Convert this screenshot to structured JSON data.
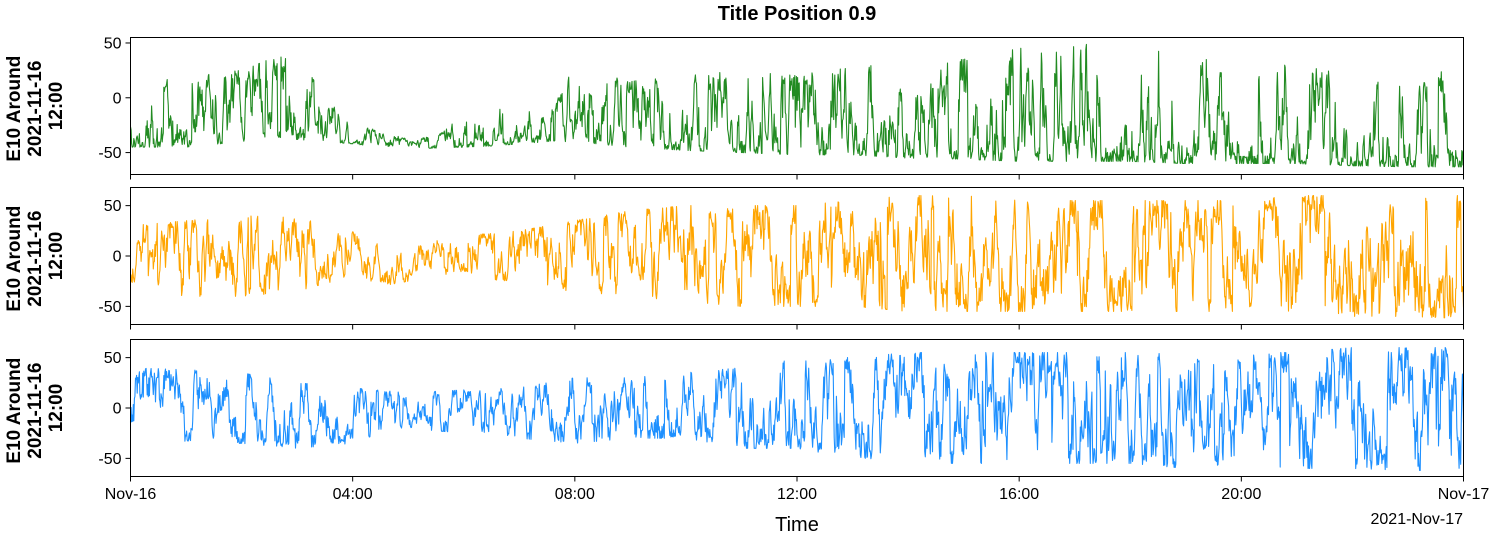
{
  "title": "Title Position 0.9",
  "xlabel": "Time",
  "date_offset_label": "2021-Nov-17",
  "chart_data": {
    "type": "line",
    "title": "Title Position 0.9",
    "xlabel": "Time",
    "x_tick_labels": [
      "Nov-16",
      "04:00",
      "08:00",
      "12:00",
      "16:00",
      "20:00",
      "Nov-17"
    ],
    "xlim": [
      "2021-11-16 00:00",
      "2021-11-17 00:00"
    ],
    "grid": false,
    "legend": "none",
    "panels": [
      {
        "ylabel_lines": [
          "E10 Around",
          "2021-11-16",
          "12:00"
        ],
        "color": "#228b22",
        "ylim": [
          -70,
          55
        ],
        "yticks": [
          50,
          0,
          -50
        ],
        "envelope": {
          "hours": [
            0,
            1,
            2,
            2.5,
            3,
            3.5,
            4,
            4.5,
            5,
            5.5,
            6,
            6.5,
            7,
            7.5,
            8,
            9,
            10,
            11,
            12,
            13,
            14,
            15,
            16,
            17,
            18,
            19,
            20,
            21,
            22,
            23,
            24
          ],
          "min": [
            -45,
            -45,
            -40,
            -35,
            -38,
            -40,
            -42,
            -45,
            -46,
            -46,
            -45,
            -44,
            -42,
            -40,
            -40,
            -45,
            -48,
            -50,
            -52,
            -52,
            -55,
            -56,
            -58,
            -58,
            -58,
            -60,
            -60,
            -60,
            -62,
            -63,
            -63
          ],
          "max": [
            10,
            20,
            25,
            35,
            40,
            0,
            -25,
            -30,
            -38,
            -35,
            -15,
            -10,
            -5,
            -20,
            30,
            15,
            20,
            25,
            20,
            30,
            30,
            35,
            45,
            50,
            45,
            40,
            30,
            30,
            20,
            15,
            30
          ]
        }
      },
      {
        "ylabel_lines": [
          "E10 Around",
          "2021-11-16",
          "12:00"
        ],
        "color": "#ffa500",
        "ylim": [
          -68,
          68
        ],
        "yticks": [
          50,
          0,
          -50
        ],
        "envelope": {
          "hours": [
            0,
            1,
            2,
            3,
            4,
            4.5,
            5,
            5.5,
            6,
            7,
            8,
            9,
            10,
            11,
            12,
            13,
            14,
            15,
            16,
            17,
            18,
            19,
            20,
            21,
            22,
            23,
            24
          ],
          "min": [
            -30,
            -40,
            -40,
            -35,
            -20,
            -30,
            -25,
            -20,
            -15,
            -30,
            -35,
            -40,
            -45,
            -50,
            -50,
            -50,
            -55,
            -55,
            -55,
            -55,
            -55,
            -55,
            -55,
            -55,
            -60,
            -60,
            -62
          ],
          "max": [
            30,
            35,
            40,
            38,
            25,
            15,
            10,
            15,
            20,
            25,
            35,
            45,
            50,
            50,
            50,
            55,
            60,
            60,
            55,
            55,
            55,
            55,
            55,
            60,
            60,
            60,
            60
          ]
        }
      },
      {
        "ylabel_lines": [
          "E10 Around",
          "2021-11-16",
          "12:00"
        ],
        "color": "#1e90ff",
        "ylim": [
          -68,
          68
        ],
        "yticks": [
          50,
          0,
          -50
        ],
        "envelope": {
          "hours": [
            0,
            1,
            2,
            3,
            4,
            5,
            6,
            7,
            8,
            9,
            10,
            11,
            12,
            13,
            14,
            15,
            16,
            17,
            18,
            19,
            20,
            21,
            22,
            23,
            24
          ],
          "min": [
            -30,
            -35,
            -35,
            -40,
            -35,
            -20,
            -25,
            -30,
            -35,
            -30,
            -30,
            -40,
            -40,
            -50,
            -55,
            -55,
            -55,
            -55,
            -55,
            -60,
            -60,
            -60,
            -60,
            -62,
            -62
          ],
          "max": [
            40,
            38,
            35,
            25,
            20,
            15,
            18,
            20,
            30,
            30,
            35,
            40,
            50,
            50,
            55,
            55,
            55,
            55,
            55,
            55,
            55,
            55,
            60,
            60,
            60
          ]
        }
      }
    ]
  }
}
